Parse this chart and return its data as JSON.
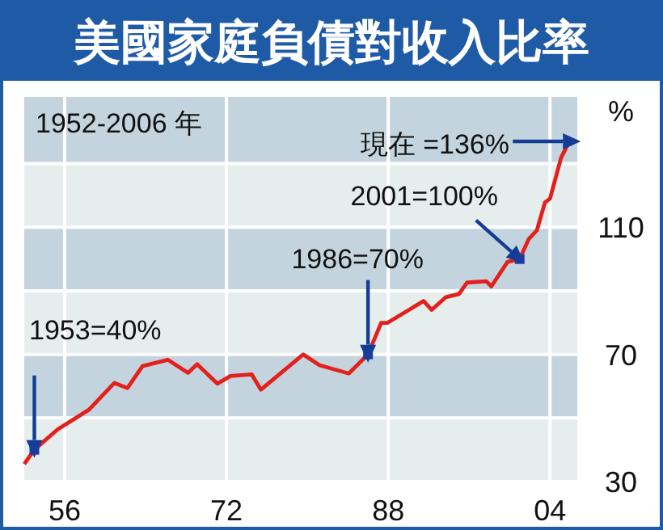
{
  "chart_data": {
    "type": "line",
    "title": "美國家庭負債對收入比率",
    "ylabel": "%",
    "x": [
      1952,
      1953,
      1955.3,
      1958.4,
      1960.9,
      1962.2,
      1963.7,
      1966.2,
      1968.2,
      1969.1,
      1971.1,
      1972.4,
      1974.5,
      1975.4,
      1979.6,
      1981.2,
      1984.1,
      1986,
      1987.3,
      1987.9,
      1991.5,
      1992.3,
      1993.7,
      1995,
      1995.8,
      1997.7,
      1998.2,
      1999.8,
      2001,
      2001.9,
      2002.7,
      2003.5,
      2004,
      2005.1,
      2005.8,
      2006.4
    ],
    "series": [
      {
        "color": "#e3201b",
        "values": [
          35.5,
          40,
          46.4,
          52.6,
          61,
          59.4,
          66.3,
          68.3,
          64.2,
          66.9,
          60.8,
          63.2,
          63.7,
          58.9,
          70,
          66.6,
          64,
          70,
          79.9,
          79.9,
          86.8,
          84,
          88,
          89,
          92.6,
          93,
          91.4,
          99.1,
          100,
          106.3,
          109,
          117.8,
          119,
          131.9,
          136.3,
          137
        ]
      }
    ],
    "xlim": [
      1952,
      2006.7
    ],
    "xticks": [
      {
        "value": 1956,
        "label": "56"
      },
      {
        "value": 1972,
        "label": "72"
      },
      {
        "value": 1988,
        "label": "88"
      },
      {
        "value": 2004,
        "label": "04"
      }
    ],
    "ylim": [
      30,
      151
    ],
    "yticks": [
      30,
      {
        "value": 50,
        "label": null
      },
      70,
      {
        "value": 90,
        "label": null
      },
      110,
      {
        "value": 130,
        "label": null
      }
    ],
    "grid": true,
    "marker": "none",
    "line_style": "solid",
    "annotations": [
      "1952-2006 年",
      {
        "text": "現在 =136%",
        "x": 2006.4,
        "y": 137
      },
      {
        "text": "2001=100%",
        "x": 2001,
        "y": 100
      },
      {
        "text": "1986=70%",
        "x": 1986,
        "y": 70
      },
      {
        "text": "1953=40%",
        "x": 1953,
        "y": 40
      }
    ]
  }
}
